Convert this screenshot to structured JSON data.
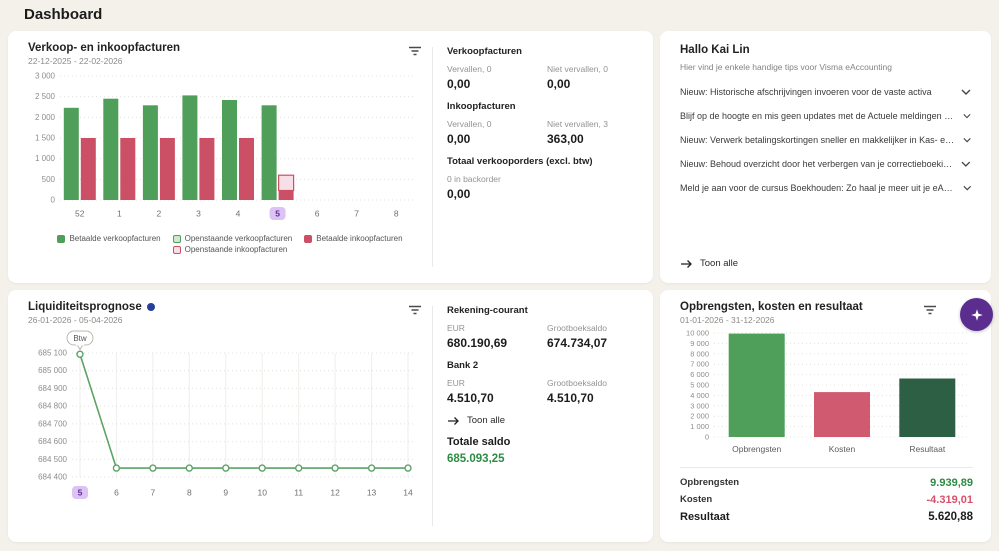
{
  "page": {
    "title": "Dashboard"
  },
  "colors": {
    "green_bar": "#4f9e59",
    "light_green": "#cfe6cf",
    "red_bar": "#cb5065",
    "light_pink": "#f8dfe5",
    "dark_green_bar": "#2d5f44",
    "line_green": "#5ba366",
    "green_text": "#2e8b43",
    "red_text": "#d8506a",
    "dark_text": "#1c1c1c",
    "accent_purple": "#5b2d8f",
    "highlight_badge_bg": "#dcc2f5",
    "info_dot_blue": "#25409a"
  },
  "cards": {
    "invoices": {
      "title": "Verkoop- en inkoopfacturen",
      "date_range": "22-12-2025 - 22-02-2026",
      "stats": {
        "verkoopfacturen": {
          "title": "Verkoopfacturen",
          "items": [
            {
              "label": "Vervallen, 0",
              "value": "0,00"
            },
            {
              "label": "Niet vervallen, 0",
              "value": "0,00"
            }
          ]
        },
        "inkoopfacturen": {
          "title": "Inkoopfacturen",
          "items": [
            {
              "label": "Vervallen, 0",
              "value": "0,00"
            },
            {
              "label": "Niet vervallen, 3",
              "value": "363,00"
            }
          ]
        },
        "verkooporders": {
          "title": "Totaal verkooporders (excl. btw)",
          "items": [
            {
              "label": "0 in backorder",
              "value": "0,00"
            }
          ]
        }
      }
    },
    "tips": {
      "title": "Hallo Kai Lin",
      "subtitle": "Hier vind je enkele handige tips voor Visma eAccounting",
      "items": [
        "Nieuw: Historische afschrijvingen invoeren voor de vaste activa",
        "Blijf op de hoogte en mis geen updates met de Actuele meldingen tab op de community",
        "Nieuw: Verwerk betalingskortingen sneller en makkelijker in Kas- en banktransacties",
        "Nieuw: Behoud overzicht door het verbergen van je correctieboekingen",
        "Meld je aan voor de cursus Boekhouden: Zo haal je meer uit je eAccounting-uren"
      ],
      "show_all_label": "Toon alle"
    },
    "liquidity": {
      "title": "Liquiditeitsprognose",
      "date_range": "26-01-2026 - 05-04-2026",
      "accounts": [
        {
          "name": "Rekening-courant",
          "eur_label": "EUR",
          "eur": "680.190,69",
          "gb_label": "Grootboeksaldo",
          "gb": "674.734,07"
        },
        {
          "name": "Bank 2",
          "eur_label": "EUR",
          "eur": "4.510,70",
          "gb_label": "Grootboeksaldo",
          "gb": "4.510,70"
        }
      ],
      "show_all_label": "Toon alle",
      "total_label": "Totale saldo",
      "total_value": "685.093,25"
    },
    "results": {
      "title": "Opbrengsten, kosten en resultaat",
      "date_range": "01-01-2026 - 31-12-2026",
      "summary": [
        {
          "label": "Opbrengsten",
          "value": "9.939,89",
          "color": "green_text"
        },
        {
          "label": "Kosten",
          "value": "-4.319,01",
          "color": "red_text"
        },
        {
          "label": "Resultaat",
          "value": "5.620,88",
          "color": "dark_text"
        }
      ]
    }
  },
  "chart_data": [
    {
      "type": "bar",
      "title": "Verkoop- en inkoopfacturen",
      "categories": [
        "52",
        "1",
        "2",
        "3",
        "4",
        "5",
        "6",
        "7",
        "8"
      ],
      "highlighted_category": "5",
      "series": [
        {
          "name": "Betaalde verkoopfacturen",
          "color": "#4f9e59",
          "values": [
            2230,
            2450,
            2290,
            2530,
            2420,
            2290,
            0,
            0,
            0
          ]
        },
        {
          "name": "Openstaande verkoopfacturen",
          "color": "#cfe6cf",
          "border": "#4f9e59",
          "values": [
            0,
            0,
            0,
            0,
            0,
            0,
            0,
            0,
            0
          ]
        },
        {
          "name": "Betaalde inkoopfacturen",
          "color": "#cb5065",
          "values": [
            1500,
            1500,
            1500,
            1500,
            1500,
            230,
            0,
            0,
            0
          ]
        },
        {
          "name": "Openstaande inkoopfacturen",
          "color": "#f8dfe5",
          "border": "#cb5065",
          "values": [
            0,
            0,
            0,
            0,
            0,
            370,
            0,
            0,
            0
          ]
        }
      ],
      "xlabel": "",
      "ylabel": "",
      "ylim": [
        0,
        3000
      ],
      "ytick_step": 500,
      "grid": "dotted-horizontal",
      "legend_position": "bottom"
    },
    {
      "type": "line",
      "title": "Liquiditeitsprognose",
      "x": [
        "5",
        "6",
        "7",
        "8",
        "9",
        "10",
        "11",
        "12",
        "13",
        "14"
      ],
      "highlighted_x": "5",
      "values": [
        685093,
        684450,
        684450,
        684450,
        684450,
        684450,
        684450,
        684450,
        684450,
        684450
      ],
      "annotation": {
        "text": "Btw",
        "x": "5"
      },
      "line_color": "#5ba366",
      "xlabel": "",
      "ylabel": "",
      "ylim": [
        684400,
        685100
      ],
      "ytick_step": 100,
      "grid": "dotted-horizontal-plus-vertical"
    },
    {
      "type": "bar",
      "title": "Opbrengsten, kosten en resultaat",
      "categories": [
        "Opbrengsten",
        "Kosten",
        "Resultaat"
      ],
      "values": [
        9939.89,
        4319.01,
        5620.88
      ],
      "colors": [
        "#4f9e59",
        "#d05a70",
        "#2d5f44"
      ],
      "xlabel": "",
      "ylabel": "",
      "ylim": [
        0,
        10000
      ],
      "ytick_step": 1000,
      "grid": "dotted-horizontal"
    }
  ]
}
